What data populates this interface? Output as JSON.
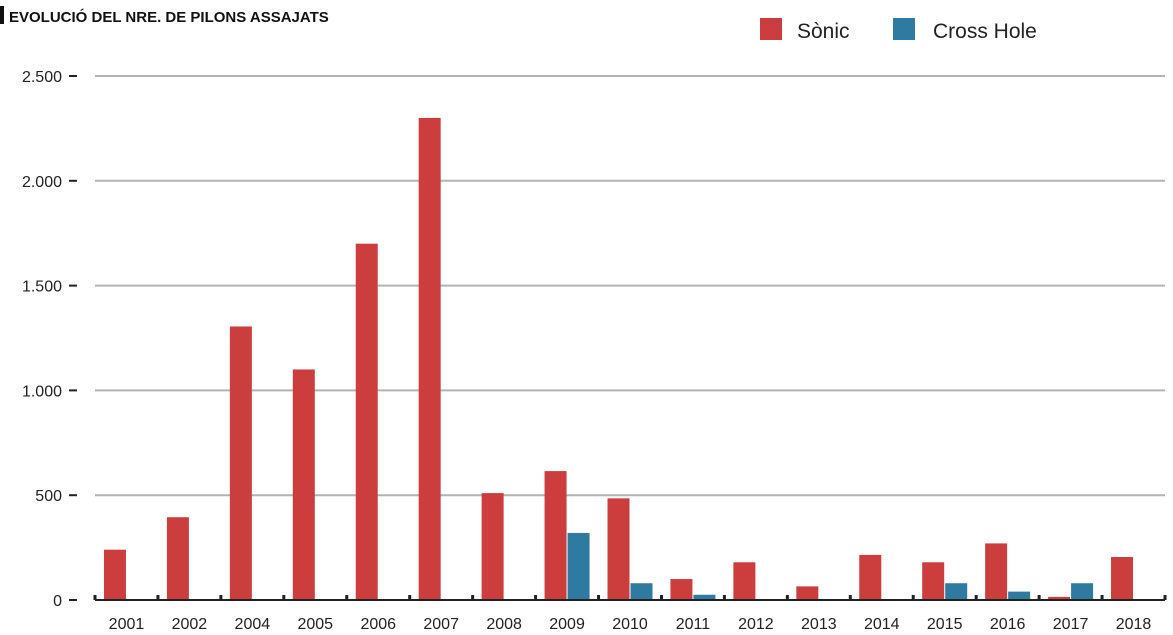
{
  "chart_data": {
    "type": "bar",
    "title": "EVOLUCIÓ DEL NRE. DE PILONS ASSAJATS",
    "xlabel": "",
    "ylabel": "",
    "categories": [
      "2001",
      "2002",
      "2004",
      "2005",
      "2006",
      "2007",
      "2008",
      "2009",
      "2010",
      "2011",
      "2012",
      "2013",
      "2014",
      "2015",
      "2016",
      "2017",
      "2018"
    ],
    "series": [
      {
        "name": "Sònic",
        "color": "#cc3d3d",
        "values": [
          240,
          395,
          1305,
          1100,
          1700,
          2300,
          510,
          615,
          485,
          100,
          180,
          65,
          215,
          180,
          270,
          15,
          205
        ]
      },
      {
        "name": "Cross Hole",
        "color": "#2e7aa0",
        "values": [
          0,
          0,
          0,
          0,
          0,
          0,
          0,
          320,
          80,
          25,
          0,
          0,
          0,
          80,
          40,
          80,
          0
        ]
      }
    ],
    "ylim": [
      0,
      2500
    ],
    "yticks": [
      0,
      500,
      1000,
      1500,
      2000,
      2500
    ],
    "ytick_labels": [
      "0",
      "500",
      "1.000",
      "1.500",
      "2.000",
      "2.500"
    ],
    "grid": true,
    "legend_position": "top-right"
  }
}
